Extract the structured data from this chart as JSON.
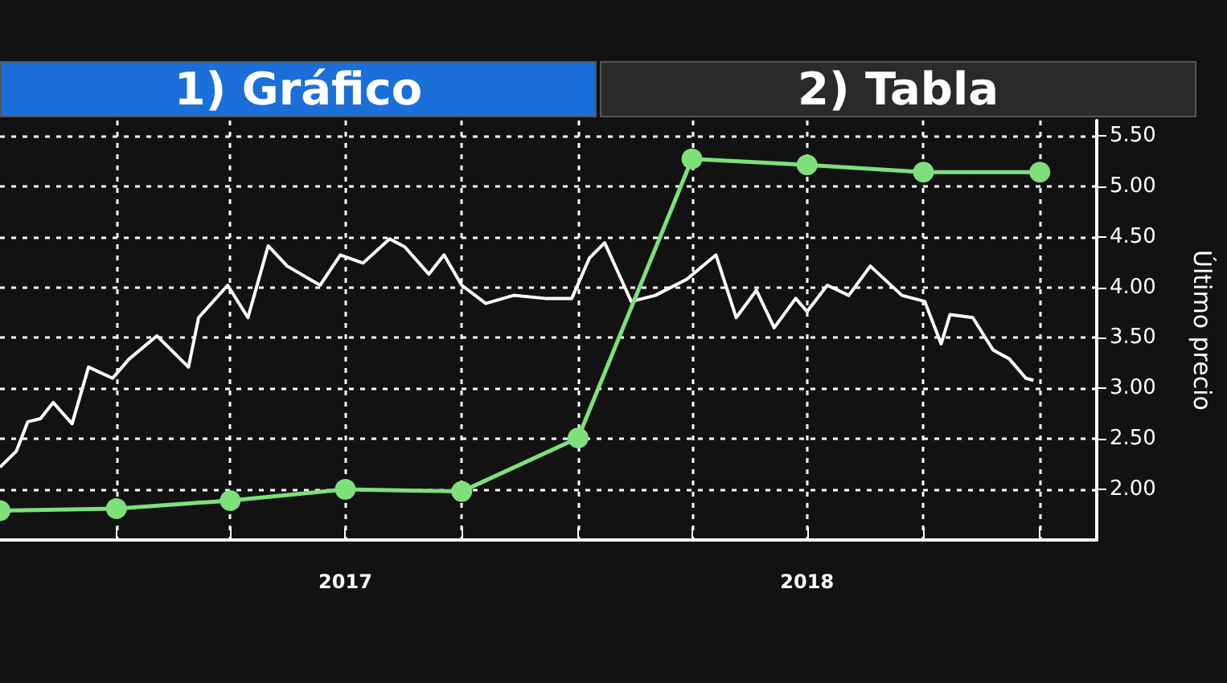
{
  "chart_data": {
    "type": "line",
    "ylabel": "Último precio",
    "annotations": [
      "1) Gráfico",
      "2) Tabla"
    ],
    "xlim": [
      "2016-10-01",
      "2019-02-15"
    ],
    "xticks": [
      {
        "value": "2017-01-01",
        "label": null
      },
      {
        "value": "2017-04-01",
        "label": null
      },
      {
        "value": "2017-07-01",
        "label": "2017"
      },
      {
        "value": "2017-10-01",
        "label": null
      },
      {
        "value": "2018-01-01",
        "label": null
      },
      {
        "value": "2018-04-01",
        "label": null
      },
      {
        "value": "2018-07-01",
        "label": "2018"
      },
      {
        "value": "2018-10-01",
        "label": null
      },
      {
        "value": "2019-01-01",
        "label": null
      }
    ],
    "ylim": [
      1.5,
      5.65
    ],
    "yticks": [
      {
        "value": 2,
        "label": "2.00"
      },
      {
        "value": 2.5,
        "label": "2.50"
      },
      {
        "value": 3,
        "label": "3.00"
      },
      {
        "value": 3.5,
        "label": "3.50"
      },
      {
        "value": 4,
        "label": "4.00"
      },
      {
        "value": 4.5,
        "label": "4.50"
      },
      {
        "value": 5,
        "label": "5.00"
      },
      {
        "value": 5.5,
        "label": "5.50"
      }
    ],
    "grid": true,
    "line_style": "solid",
    "series": [
      {
        "color": "#ffffff",
        "marker": "none",
        "x": [
          "2016-10-01",
          "2016-10-14",
          "2016-10-23",
          "2016-11-02",
          "2016-11-12",
          "2016-11-27",
          "2016-12-10",
          "2016-12-29",
          "2017-01-11",
          "2017-02-02",
          "2017-02-27",
          "2017-03-07",
          "2017-03-30",
          "2017-04-15",
          "2017-05-01",
          "2017-05-16",
          "2017-06-11",
          "2017-06-27",
          "2017-07-15",
          "2017-08-05",
          "2017-08-17",
          "2017-09-05",
          "2017-09-17",
          "2017-10-01",
          "2017-10-20",
          "2017-11-11",
          "2017-12-06",
          "2017-12-27",
          "2018-01-10",
          "2018-01-22",
          "2018-02-12",
          "2018-03-03",
          "2018-03-28",
          "2018-04-20",
          "2018-05-06",
          "2018-05-22",
          "2018-06-05",
          "2018-06-22",
          "2018-07-01",
          "2018-07-17",
          "2018-08-03",
          "2018-08-20",
          "2018-09-14",
          "2018-10-02",
          "2018-10-15",
          "2018-10-22",
          "2018-11-09",
          "2018-11-25",
          "2018-12-08",
          "2018-12-21",
          "2018-12-27"
        ],
        "values": [
          2.22,
          2.38,
          2.67,
          2.7,
          2.86,
          2.65,
          3.21,
          3.1,
          3.29,
          3.52,
          3.21,
          3.7,
          4.02,
          3.7,
          4.41,
          4.21,
          4.02,
          4.32,
          4.24,
          4.48,
          4.4,
          4.13,
          4.32,
          4.02,
          3.84,
          3.92,
          3.89,
          3.89,
          4.29,
          4.44,
          3.86,
          3.92,
          4.08,
          4.32,
          3.7,
          3.97,
          3.6,
          3.89,
          3.76,
          4.02,
          3.92,
          4.21,
          3.92,
          3.86,
          3.44,
          3.73,
          3.7,
          3.38,
          3.29,
          3.1,
          3.08
        ]
      },
      {
        "color": "#7ee07a",
        "marker": "circle",
        "x": [
          "2016-10-01",
          "2017-01-01",
          "2017-04-01",
          "2017-07-01",
          "2017-10-01",
          "2018-01-01",
          "2018-04-01",
          "2018-07-01",
          "2018-10-01",
          "2019-01-01"
        ],
        "values": [
          1.79,
          1.81,
          1.89,
          2.0,
          1.98,
          2.51,
          5.27,
          5.21,
          5.14,
          5.14
        ]
      }
    ]
  }
}
